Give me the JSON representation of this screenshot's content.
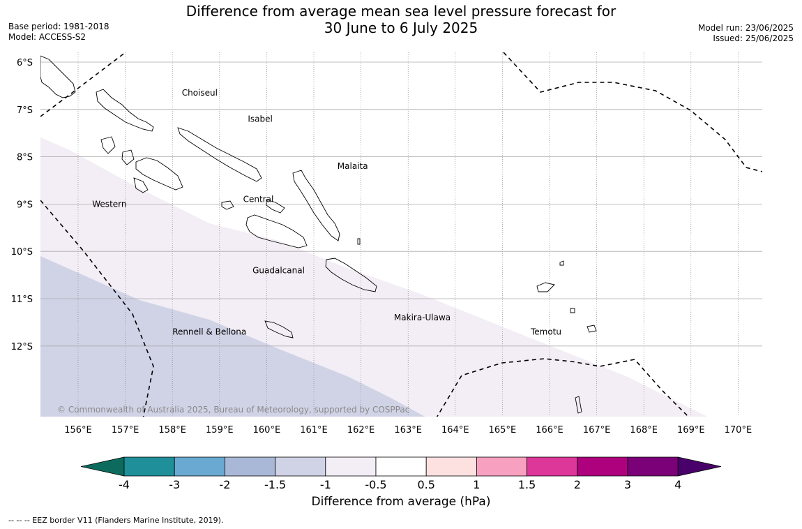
{
  "title_line1": "Difference from average mean sea level pressure forecast for",
  "title_line2": "30 June to 6 July 2025",
  "meta_left": [
    "Base period: 1981-2018",
    "Model: ACCESS-S2"
  ],
  "meta_right": [
    "Model run: 23/06/2025",
    "Issued: 25/06/2025"
  ],
  "copyright": "© Commonwealth of Australia 2025, Bureau of Meteorology, supported by COSPPac",
  "lat_labels": [
    "6°S",
    "7°S",
    "8°S",
    "9°S",
    "10°S",
    "11°S",
    "12°S"
  ],
  "lon_labels": [
    "156°E",
    "157°E",
    "158°E",
    "159°E",
    "160°E",
    "161°E",
    "162°E",
    "163°E",
    "164°E",
    "165°E",
    "166°E",
    "167°E",
    "168°E",
    "169°E",
    "170°E"
  ],
  "regions": [
    {
      "name": "Choiseul",
      "lon": 158.2,
      "lat": -6.65
    },
    {
      "name": "Isabel",
      "lon": 159.6,
      "lat": -7.2
    },
    {
      "name": "Malaita",
      "lon": 161.5,
      "lat": -8.2
    },
    {
      "name": "Western",
      "lon": 156.3,
      "lat": -9.0
    },
    {
      "name": "Central",
      "lon": 159.5,
      "lat": -8.9
    },
    {
      "name": "Guadalcanal",
      "lon": 159.7,
      "lat": -10.4
    },
    {
      "name": "Makira-Ulawa",
      "lon": 162.7,
      "lat": -11.4
    },
    {
      "name": "Temotu",
      "lon": 165.6,
      "lat": -11.7
    },
    {
      "name": "Rennell & Bellona",
      "lon": 158.0,
      "lat": -11.7
    }
  ],
  "colorbar": {
    "colors": [
      "#0d6b5e",
      "#1f8f99",
      "#6aaad2",
      "#a9b8d6",
      "#d0d3e6",
      "#f3edf5",
      "#ffffff",
      "#fde0e0",
      "#f7a0bf",
      "#dc3799",
      "#ae017e",
      "#7a0177",
      "#49006a"
    ],
    "tick_labels": [
      "-4",
      "-3",
      "-2",
      "-1.5",
      "-1",
      "-0.5",
      "0.5",
      "1",
      "1.5",
      "2",
      "3",
      "4"
    ],
    "label": "Difference from average (hPa)"
  },
  "legend_note": "-- -- -- EEZ border V11 (Flanders Marine Institute, 2019)."
}
